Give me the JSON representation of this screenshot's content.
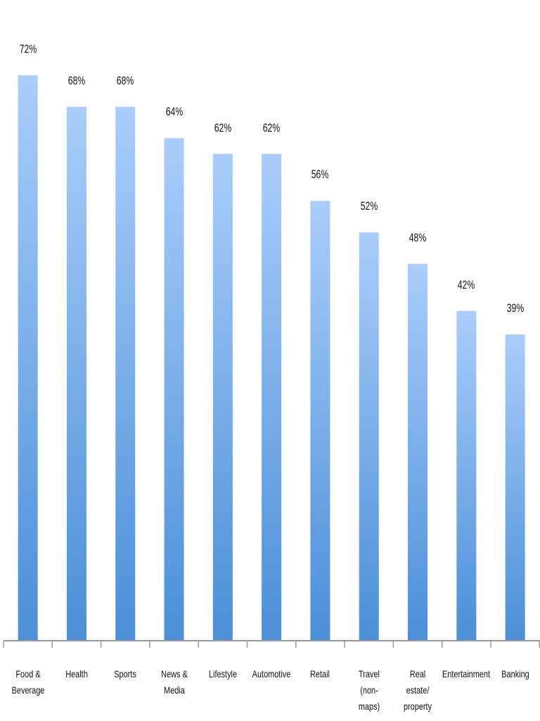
{
  "chart_data": {
    "type": "bar",
    "title": "",
    "xlabel": "",
    "ylabel": "",
    "ylim": [
      0,
      80
    ],
    "grid": false,
    "categories": [
      "Food & Beverage",
      "Health",
      "Sports",
      "News & Media",
      "Lifestyle",
      "Automotive",
      "Retail",
      "Travel (non-maps)",
      "Real estate/ property",
      "Entertainment",
      "Banking"
    ],
    "values": [
      72,
      68,
      68,
      64,
      62,
      62,
      56,
      52,
      48,
      42,
      39
    ],
    "data_labels": [
      "72%",
      "68%",
      "68%",
      "64%",
      "62%",
      "62%",
      "56%",
      "52%",
      "48%",
      "42%",
      "39%"
    ],
    "colors": {
      "bar_top": "#aacdfb",
      "bar_bottom": "#4a8fd8",
      "axis": "#999999"
    }
  }
}
